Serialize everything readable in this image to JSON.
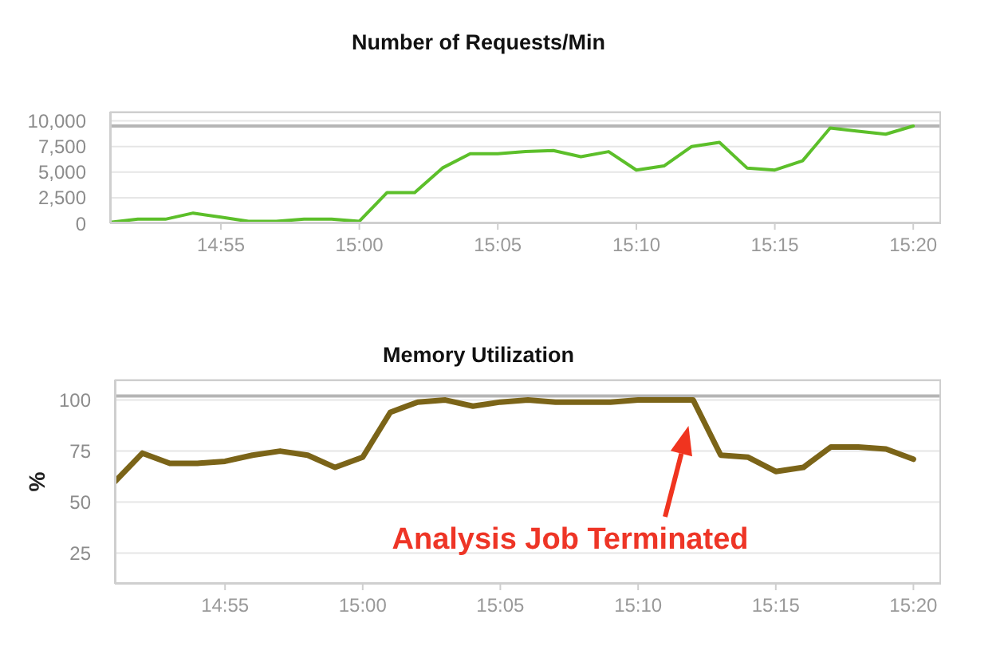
{
  "chart_data": [
    {
      "type": "line",
      "title": "Number of Requests/Min",
      "x": [
        14.85,
        14.8667,
        14.8833,
        14.9,
        14.9167,
        14.9333,
        14.95,
        14.9667,
        14.9833,
        15,
        15.0167,
        15.0333,
        15.05,
        15.0667,
        15.0833,
        15.1,
        15.1167,
        15.1333,
        15.15,
        15.1667,
        15.1833,
        15.2,
        15.2167,
        15.2333,
        15.25,
        15.2667,
        15.2833,
        15.3,
        15.3167,
        15.3333
      ],
      "series": [
        {
          "color": "#5cbf2a",
          "values": [
            100,
            400,
            400,
            1000,
            600,
            200,
            200,
            400,
            400,
            200,
            3000,
            3000,
            5400,
            6800,
            6800,
            7000,
            7100,
            6500,
            7000,
            5200,
            5600,
            7500,
            7900,
            5400,
            5200,
            6100,
            9300,
            9000,
            8700,
            9500
          ]
        }
      ],
      "xlim": [
        14.85,
        15.35
      ],
      "xticks": [
        {
          "value": 14.9167,
          "label": "14:55"
        },
        {
          "value": 15,
          "label": "15:00"
        },
        {
          "value": 15.0833,
          "label": "15:05"
        },
        {
          "value": 15.1667,
          "label": "15:10"
        },
        {
          "value": 15.25,
          "label": "15:15"
        },
        {
          "value": 15.3333,
          "label": "15:20"
        }
      ],
      "ylim": [
        0,
        10900
      ],
      "yticks": [
        0,
        {
          "value": 2500,
          "label": "2,500"
        },
        {
          "value": 5000,
          "label": "5,000"
        },
        {
          "value": 7500,
          "label": "7,500"
        },
        {
          "value": 10000,
          "label": "10,000"
        }
      ],
      "grid": "y",
      "ref_lines": [
        {
          "axis": "y",
          "value": 9500,
          "color": "#b5b5b5"
        }
      ]
    },
    {
      "type": "line",
      "title": "Memory Utilization",
      "ylabel": "%",
      "x": [
        14.85,
        14.8667,
        14.8833,
        14.9,
        14.9167,
        14.9333,
        14.95,
        14.9667,
        14.9833,
        15,
        15.0167,
        15.0333,
        15.05,
        15.0667,
        15.0833,
        15.1,
        15.1167,
        15.1333,
        15.15,
        15.1667,
        15.1833,
        15.2,
        15.2167,
        15.2333,
        15.25,
        15.2667,
        15.2833,
        15.3,
        15.3167,
        15.3333
      ],
      "series": [
        {
          "color": "#7b6418",
          "values": [
            60,
            74,
            69,
            69,
            70,
            73,
            75,
            73,
            67,
            72,
            94,
            99,
            100,
            97,
            99,
            100,
            99,
            99,
            99,
            100,
            100,
            100,
            73,
            72,
            65,
            67,
            77,
            77,
            76,
            71
          ]
        }
      ],
      "xlim": [
        14.85,
        15.35
      ],
      "xticks": [
        {
          "value": 14.9167,
          "label": "14:55"
        },
        {
          "value": 15,
          "label": "15:00"
        },
        {
          "value": 15.0833,
          "label": "15:05"
        },
        {
          "value": 15.1667,
          "label": "15:10"
        },
        {
          "value": 15.25,
          "label": "15:15"
        },
        {
          "value": 15.3333,
          "label": "15:20"
        }
      ],
      "ylim": [
        10,
        110
      ],
      "yticks": [
        25,
        50,
        75,
        100
      ],
      "grid": "y",
      "ref_lines": [
        {
          "axis": "y",
          "value": 102,
          "color": "#b5b5b5"
        }
      ],
      "annotations": [
        "Analysis Job Terminated"
      ]
    }
  ]
}
